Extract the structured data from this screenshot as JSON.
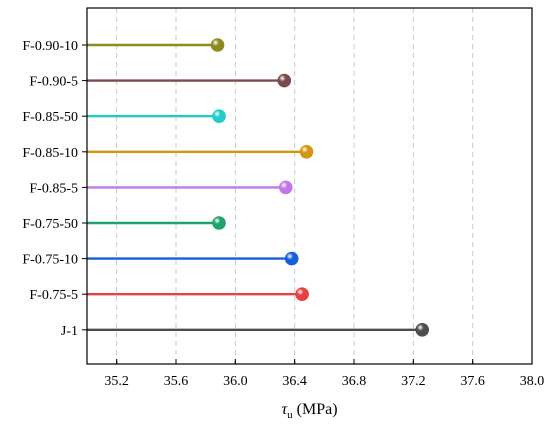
{
  "chart_data": {
    "type": "lollipop",
    "orientation": "horizontal",
    "xlabel_symbol": "τ",
    "xlabel_subscript": "u",
    "xlabel_unit": " (MPa)",
    "xlim": [
      35.0,
      38.0
    ],
    "xticks": [
      "35.2",
      "35.6",
      "36.0",
      "36.4",
      "36.8",
      "37.2",
      "37.6",
      "38.0"
    ],
    "xtick_values": [
      35.2,
      35.6,
      36.0,
      36.4,
      36.8,
      37.2,
      37.6,
      38.0
    ],
    "grid": "vertical-dashed",
    "categories": [
      "F-0.90-10",
      "F-0.90-5",
      "F-0.85-50",
      "F-0.85-10",
      "F-0.85-5",
      "F-0.75-50",
      "F-0.75-10",
      "F-0.75-5",
      "J-1"
    ],
    "values": [
      35.88,
      36.33,
      35.89,
      36.48,
      36.34,
      35.89,
      36.38,
      36.45,
      37.26
    ],
    "colors": [
      "#8c8c1e",
      "#7b4b4b",
      "#22cccc",
      "#d4960c",
      "#c277e8",
      "#1fa36a",
      "#1560d8",
      "#e84040",
      "#4d4d4d"
    ]
  }
}
